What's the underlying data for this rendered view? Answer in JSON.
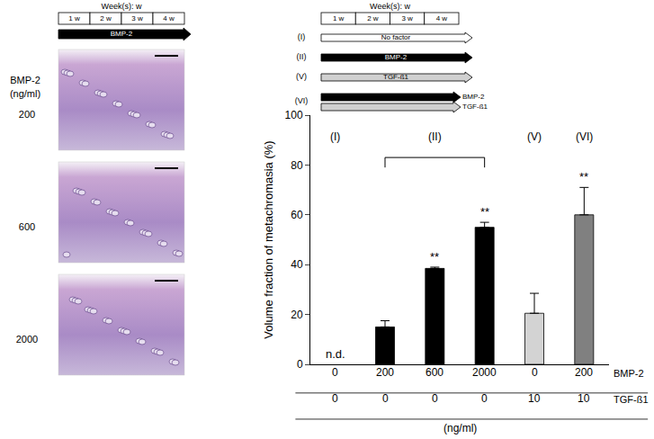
{
  "schematic_left": {
    "header": "Week(s): w",
    "weeks": [
      "1 w",
      "2 w",
      "3 w",
      "4 w"
    ],
    "arrow": {
      "text": "BMP-2",
      "color": "#000000"
    }
  },
  "panels": {
    "label": "BMP-2",
    "unit": "(ng/ml)",
    "rows": [
      200,
      600,
      2000
    ]
  },
  "schematic_right": {
    "header": "Week(s): w",
    "weeks": [
      "1 w",
      "2 w",
      "3 w",
      "4 w"
    ],
    "arrows": [
      {
        "id": "(I)",
        "items": [
          {
            "text": "No factor",
            "color": "#ffffff"
          }
        ]
      },
      {
        "id": "(II)",
        "items": [
          {
            "text": "BMP-2",
            "color": "#000000"
          }
        ]
      },
      {
        "id": "(V)",
        "items": [
          {
            "text": "TGF-ß1",
            "color": "#d0d0d0"
          }
        ]
      },
      {
        "id": "(VI)",
        "items": [
          {
            "text": "BMP-2",
            "color": "#000000"
          },
          {
            "text": "TGF-ß1",
            "color": "#d0d0d0"
          }
        ]
      }
    ]
  },
  "chart_data": {
    "type": "bar",
    "y_label": "Volume fraction of metachromasia (%)",
    "values": [
      null,
      15,
      38.5,
      55,
      20.5,
      60
    ],
    "errors": [
      null,
      2.5,
      0.5,
      2,
      8,
      11
    ],
    "colors": [
      "#000000",
      "#000000",
      "#000000",
      "#000000",
      "#d3d3d3",
      "#808080"
    ],
    "ylim": [
      0,
      100
    ],
    "yticks": [
      0,
      20,
      40,
      60,
      80,
      100
    ],
    "grid": false,
    "notes": [
      {
        "text": "n.d.",
        "index": 0
      },
      {
        "text": "**",
        "index": 2
      },
      {
        "text": "**",
        "index": 3
      },
      {
        "text": "**",
        "index": 5
      }
    ],
    "groups": [
      {
        "label": "(I)",
        "from": 0,
        "to": 0
      },
      {
        "label": "(II)",
        "from": 1,
        "to": 3
      },
      {
        "label": "(V)",
        "from": 4,
        "to": 4
      },
      {
        "label": "(VI)",
        "from": 5,
        "to": 5
      }
    ],
    "x_table": {
      "rows": [
        {
          "label": "BMP-2",
          "values": [
            0,
            200,
            600,
            2000,
            0,
            200
          ]
        },
        {
          "label": "TGF-ß1",
          "values": [
            0,
            0,
            0,
            0,
            10,
            10
          ]
        }
      ],
      "unit": "(ng/ml)"
    }
  }
}
